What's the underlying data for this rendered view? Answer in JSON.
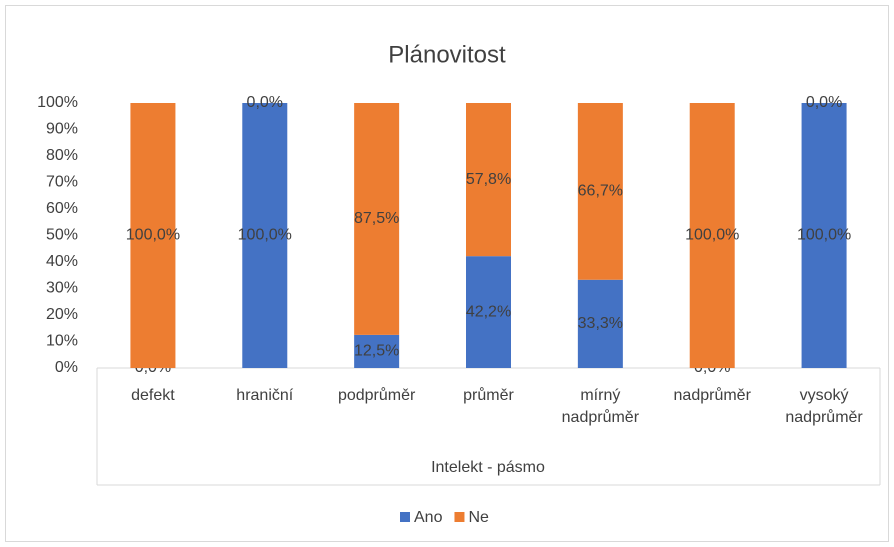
{
  "chart_data": {
    "type": "stacked_bar",
    "title": "Plánovitost",
    "x_label": "Intelekt - pásmo",
    "categories": [
      "defekt",
      "hraniční",
      "podprůměr",
      "průměr",
      "mírný nadprůměr",
      "nadprůměr",
      "vysoký nadprůměr"
    ],
    "series": [
      {
        "name": "Ano",
        "color": "#4472c4",
        "values": [
          0,
          100,
          12.5,
          42.2,
          33.3,
          0,
          100
        ],
        "value_labels": [
          "0,0%",
          "100,0%",
          "12,5%",
          "42,2%",
          "33,3%",
          "0,0%",
          "100,0%"
        ]
      },
      {
        "name": "Ne",
        "color": "#ed7d31",
        "values": [
          100,
          0,
          87.5,
          57.8,
          66.7,
          100,
          0
        ],
        "value_labels": [
          "100,0%",
          "0,0%",
          "87,5%",
          "57,8%",
          "66,7%",
          "100,0%",
          "0,0%"
        ]
      }
    ],
    "ylim": [
      0,
      100
    ],
    "yticks": [
      {
        "value": 0,
        "label": "0%"
      },
      {
        "value": 10,
        "label": "10%"
      },
      {
        "value": 20,
        "label": "20%"
      },
      {
        "value": 30,
        "label": "30%"
      },
      {
        "value": 40,
        "label": "40%"
      },
      {
        "value": 50,
        "label": "50%"
      },
      {
        "value": 60,
        "label": "60%"
      },
      {
        "value": 70,
        "label": "70%"
      },
      {
        "value": 80,
        "label": "80%"
      },
      {
        "value": 90,
        "label": "90%"
      },
      {
        "value": 100,
        "label": "100%"
      }
    ],
    "grid": false,
    "legend": "bottom"
  }
}
